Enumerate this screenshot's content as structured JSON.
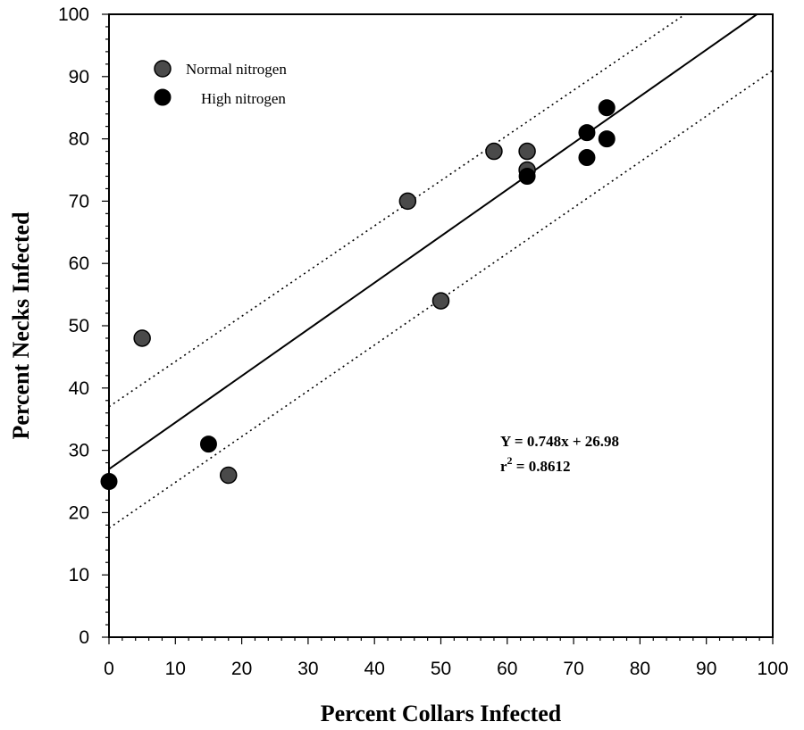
{
  "chart_data": {
    "type": "scatter",
    "xlabel": "Percent Collars Infected",
    "ylabel": "Percent Necks Infected",
    "xlim": [
      0,
      100
    ],
    "ylim": [
      0,
      100
    ],
    "x_ticks": [
      "0",
      "10",
      "20",
      "30",
      "40",
      "50",
      "60",
      "70",
      "80",
      "90",
      "100"
    ],
    "y_ticks": [
      "0",
      "10",
      "20",
      "30",
      "40",
      "50",
      "60",
      "70",
      "80",
      "90",
      "100"
    ],
    "legend_position": "top-left",
    "grid": false,
    "series": [
      {
        "name": "Normal nitrogen",
        "marker": "gray-filled circle",
        "color": "#3a3a3a",
        "points": [
          [
            5,
            48
          ],
          [
            18,
            26
          ],
          [
            45,
            70
          ],
          [
            50,
            54
          ],
          [
            58,
            78
          ],
          [
            63,
            78
          ],
          [
            63,
            75
          ]
        ]
      },
      {
        "name": "High nitrogen",
        "marker": "black filled circle",
        "color": "#000000",
        "points": [
          [
            0,
            25
          ],
          [
            15,
            31
          ],
          [
            63,
            74
          ],
          [
            72,
            81
          ],
          [
            72,
            77
          ],
          [
            75,
            85
          ],
          [
            75,
            80
          ]
        ]
      }
    ],
    "regression": {
      "slope": 0.748,
      "intercept": 26.98,
      "upper_band": [
        [
          0,
          37
        ],
        [
          86.8,
          100
        ]
      ],
      "lower_band": [
        [
          0,
          17.5
        ],
        [
          100,
          91
        ]
      ]
    },
    "annotation": {
      "line1": "Y = 0.748x + 26.98",
      "line2_base": "r",
      "line2_sup": "2",
      "line2_rest": " = 0.8612"
    }
  }
}
